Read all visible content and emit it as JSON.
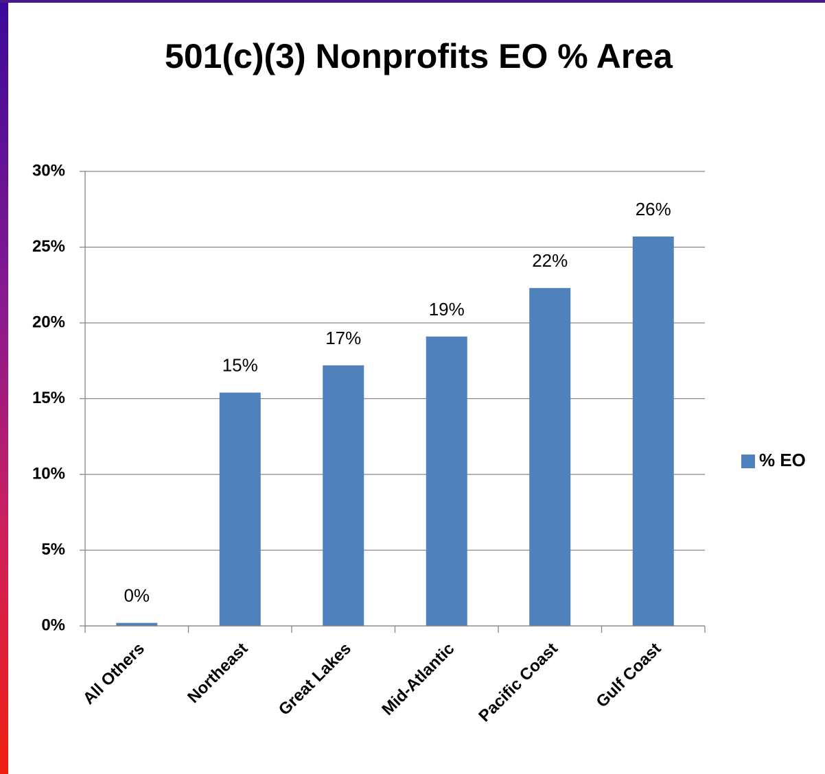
{
  "chart_data": {
    "type": "bar",
    "title": "501(c)(3) Nonprofits EO % Area",
    "categories": [
      "All Others",
      "Northeast",
      "Great Lakes",
      "Mid-Atlantic",
      "Pacific Coast",
      "Gulf Coast"
    ],
    "series": [
      {
        "name": "% EO",
        "color": "#4f81bd",
        "values": [
          0.2,
          15.4,
          17.2,
          19.1,
          22.3,
          25.7
        ],
        "value_labels": [
          "0%",
          "15%",
          "17%",
          "19%",
          "22%",
          "26%"
        ]
      }
    ],
    "ylim": [
      0,
      30
    ],
    "yticks": [
      {
        "value": 0,
        "label": "0%"
      },
      {
        "value": 5,
        "label": "5%"
      },
      {
        "value": 10,
        "label": "10%"
      },
      {
        "value": 15,
        "label": "15%"
      },
      {
        "value": 20,
        "label": "20%"
      },
      {
        "value": 25,
        "label": "25%"
      },
      {
        "value": 30,
        "label": "30%"
      }
    ],
    "grid": true,
    "legend": "right"
  }
}
